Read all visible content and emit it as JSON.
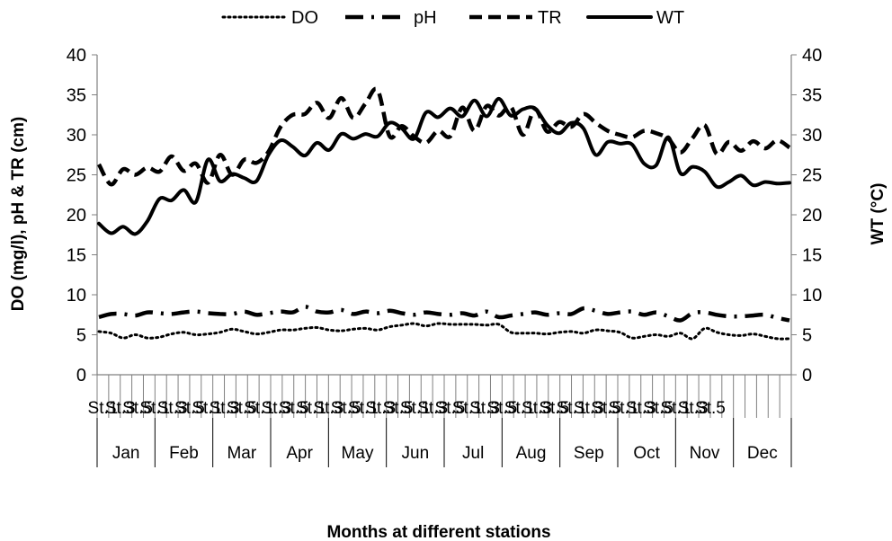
{
  "chart_data": {
    "type": "line",
    "xlabel": "Months at different stations",
    "ylabel_left": "DO (mg/l), pH & TR (cm)",
    "ylabel_right": "WT (°C)",
    "ylim_left": [
      0,
      40
    ],
    "ylim_right": [
      0,
      40
    ],
    "yticks": [
      0,
      5,
      10,
      15,
      20,
      25,
      30,
      35,
      40
    ],
    "grid": false,
    "legend_position": "top",
    "months": [
      "Jan",
      "Feb",
      "Mar",
      "Apr",
      "May",
      "Jun",
      "Jul",
      "Aug",
      "Sep",
      "Oct",
      "Nov",
      "Dec"
    ],
    "stations": [
      "St.1",
      "St.2",
      "St.3",
      "St.4",
      "St.5"
    ],
    "station_labels": [
      "St.1",
      "St.3",
      "St.5",
      "St.1",
      "St.3",
      "St.5",
      "St.1",
      "St.3",
      "St.5",
      "St.1",
      "St.3",
      "St.5",
      "St.1",
      "St.3",
      "St.5",
      "St.1",
      "St.3",
      "St.5",
      "St.1",
      "St.3",
      "St.5",
      "St.1",
      "St.3",
      "St.5",
      "St.1",
      "St.3",
      "St.5",
      "St.1",
      "St.3",
      "St.5",
      "St.1",
      "St.3",
      "St.5",
      "St.1",
      "St.3",
      "St.5"
    ],
    "series": [
      {
        "name": "DO",
        "style": "dotted",
        "axis": "left",
        "values": [
          5.4,
          5.2,
          4.6,
          5.0,
          4.6,
          4.7,
          5.1,
          5.3,
          5.0,
          5.1,
          5.3,
          5.7,
          5.4,
          5.1,
          5.3,
          5.6,
          5.6,
          5.8,
          5.9,
          5.6,
          5.5,
          5.7,
          5.8,
          5.6,
          6.0,
          6.2,
          6.4,
          6.1,
          6.4,
          6.3,
          6.3,
          6.3,
          6.2,
          6.3,
          5.3,
          5.2,
          5.2,
          5.1,
          5.3,
          5.4,
          5.2,
          5.6,
          5.5,
          5.3,
          4.6,
          4.8,
          5.0,
          4.8,
          5.2,
          4.5,
          5.8,
          5.3,
          5.0,
          4.9,
          5.1,
          4.8,
          4.5,
          4.5
        ]
      },
      {
        "name": "pH",
        "style": "dash-dot",
        "axis": "left",
        "values": [
          7.2,
          7.6,
          7.6,
          7.4,
          7.8,
          7.7,
          7.6,
          7.8,
          7.9,
          7.7,
          7.6,
          7.6,
          7.9,
          7.5,
          7.7,
          7.9,
          7.8,
          8.5,
          7.9,
          7.8,
          8.1,
          7.6,
          7.9,
          7.7,
          8.0,
          7.7,
          7.5,
          7.8,
          7.6,
          7.5,
          7.7,
          7.4,
          7.9,
          7.2,
          7.4,
          7.6,
          7.8,
          7.5,
          7.7,
          7.6,
          8.3,
          8.0,
          7.6,
          7.8,
          7.9,
          7.5,
          7.8,
          7.3,
          6.8,
          7.7,
          7.8,
          7.5,
          7.3,
          7.3,
          7.4,
          7.5,
          7.1,
          6.8
        ]
      },
      {
        "name": "TR",
        "style": "dashed",
        "axis": "left",
        "values": [
          26.3,
          23.8,
          25.7,
          25.0,
          25.9,
          25.4,
          27.3,
          25.5,
          26.4,
          24.0,
          27.5,
          25.0,
          26.9,
          26.5,
          27.9,
          31.0,
          32.5,
          32.6,
          34.0,
          32.1,
          34.6,
          32.1,
          33.9,
          35.6,
          29.8,
          31.1,
          29.8,
          29.0,
          30.5,
          29.8,
          33.4,
          30.5,
          33.6,
          32.4,
          33.5,
          30.0,
          33.2,
          30.4,
          31.6,
          31.0,
          32.6,
          31.5,
          30.5,
          30.0,
          29.7,
          30.5,
          30.2,
          29.5,
          27.8,
          29.6,
          31.2,
          27.6,
          29.1,
          28.0,
          29.2,
          28.3,
          29.3,
          28.4
        ]
      },
      {
        "name": "WT",
        "style": "solid",
        "axis": "right",
        "values": [
          18.9,
          17.7,
          18.5,
          17.6,
          19.2,
          22.0,
          21.8,
          23.1,
          21.6,
          26.9,
          24.2,
          25.1,
          24.6,
          24.2,
          27.5,
          29.3,
          28.5,
          27.4,
          29.0,
          28.1,
          30.1,
          29.5,
          30.1,
          29.8,
          31.5,
          30.8,
          29.5,
          32.8,
          32.2,
          33.3,
          32.3,
          34.3,
          32.3,
          34.5,
          32.4,
          33.2,
          33.3,
          31.2,
          30.2,
          31.5,
          30.8,
          27.5,
          29.1,
          28.9,
          28.8,
          26.4,
          26.2,
          29.7,
          25.2,
          26.0,
          25.4,
          23.5,
          24.1,
          24.9,
          23.7,
          24.1,
          23.9,
          24.0
        ]
      }
    ]
  }
}
